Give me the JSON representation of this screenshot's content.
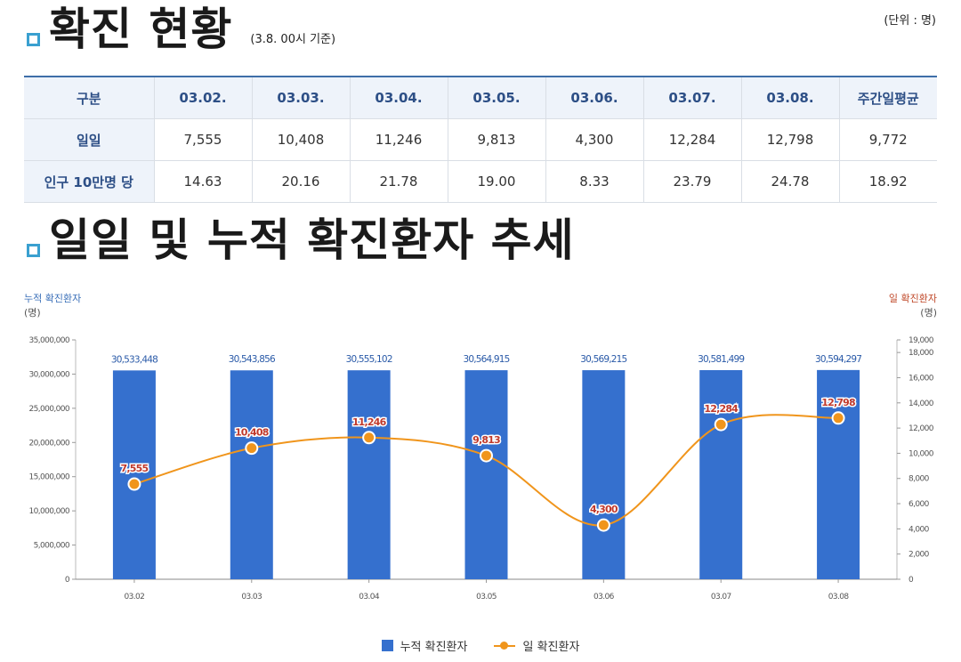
{
  "section1": {
    "title": "확진 현황",
    "subtitle": "(3.8. 00시 기준)",
    "unit": "(단위 : 명)"
  },
  "table": {
    "headers": [
      "구분",
      "03.02.",
      "03.03.",
      "03.04.",
      "03.05.",
      "03.06.",
      "03.07.",
      "03.08.",
      "주간일평균"
    ],
    "rows": [
      {
        "label": "일일",
        "values": [
          "7,555",
          "10,408",
          "11,246",
          "9,813",
          "4,300",
          "12,284",
          "12,798",
          "9,772"
        ]
      },
      {
        "label": "인구 10만명 당",
        "values": [
          "14.63",
          "20.16",
          "21.78",
          "19.00",
          "8.33",
          "23.79",
          "24.78",
          "18.92"
        ]
      }
    ]
  },
  "section2": {
    "title": "일일 및 누적 확진환자 추세"
  },
  "colors": {
    "bar": "#3570ce",
    "line": "#f0951c",
    "left_label": "#3a6fb8",
    "right_label": "#c0492a",
    "line_label": "#c0392b"
  },
  "chart_data": {
    "type": "bar",
    "categories": [
      "03.02",
      "03.03",
      "03.04",
      "03.05",
      "03.06",
      "03.07",
      "03.08"
    ],
    "series": [
      {
        "name": "누적 확진환자",
        "type": "bar",
        "axis": "left",
        "values": [
          30533448,
          30543856,
          30555102,
          30564915,
          30569215,
          30581499,
          30594297
        ],
        "labels": [
          "30,533,448",
          "30,543,856",
          "30,555,102",
          "30,564,915",
          "30,569,215",
          "30,581,499",
          "30,594,297"
        ]
      },
      {
        "name": "일 확진환자",
        "type": "line",
        "axis": "right",
        "values": [
          7555,
          10408,
          11246,
          9813,
          4300,
          12284,
          12798
        ],
        "labels": [
          "7,555",
          "10,408",
          "11,246",
          "9,813",
          "4,300",
          "12,284",
          "12,798"
        ]
      }
    ],
    "ylabel_left": "누적 확진환자",
    "ylabel_left_unit": "(명)",
    "ylabel_right": "일 확진환자",
    "ylabel_right_unit": "(명)",
    "ylim_left": [
      0,
      35000000
    ],
    "ylim_right": [
      0,
      19000
    ],
    "yticks_left": [
      "35,000,000",
      "30,000,000",
      "25,000,000",
      "20,000,000",
      "15,000,000",
      "10,000,000",
      "5,000,000",
      "0"
    ],
    "yticks_left_values": [
      35000000,
      30000000,
      25000000,
      20000000,
      15000000,
      10000000,
      5000000,
      0
    ],
    "yticks_right": [
      "19,000",
      "18,000",
      "16,000",
      "14,000",
      "12,000",
      "10,000",
      "8,000",
      "6,000",
      "4,000",
      "2,000",
      "0"
    ],
    "yticks_right_values": [
      19000,
      18000,
      16000,
      14000,
      12000,
      10000,
      8000,
      6000,
      4000,
      2000,
      0
    ],
    "legend_position": "bottom"
  }
}
